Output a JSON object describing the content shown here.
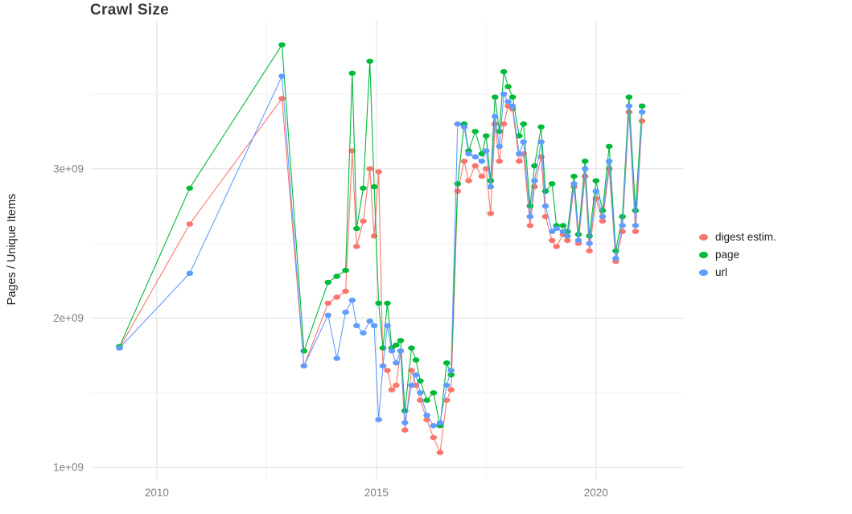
{
  "chart_data": {
    "type": "line",
    "title": "Crawl Size",
    "xlabel": "",
    "ylabel": "Pages / Unique Items",
    "legend_position": "right",
    "grid": true,
    "x_axis": {
      "range": [
        2008.5,
        2022.0
      ],
      "ticks": [
        {
          "v": 2010,
          "label": "2010"
        },
        {
          "v": 2015,
          "label": "2015"
        },
        {
          "v": 2020,
          "label": "2020"
        }
      ],
      "minor": [
        2012.5,
        2017.5
      ]
    },
    "y_axis": {
      "range": [
        920000000.0,
        3990000000.0
      ],
      "ticks": [
        {
          "v": 1000000000.0,
          "label": "1e+09"
        },
        {
          "v": 2000000000.0,
          "label": "2e+09"
        },
        {
          "v": 3000000000.0,
          "label": "3e+09"
        }
      ],
      "minor": [
        1500000000.0,
        2500000000.0,
        3500000000.0
      ]
    },
    "series": [
      {
        "name": "digest estim.",
        "color": "#F8766D",
        "column": 1
      },
      {
        "name": "page",
        "color": "#00BA38",
        "column": 2
      },
      {
        "name": "url",
        "color": "#619CFF",
        "column": 3
      }
    ],
    "columns": [
      "year",
      "digest estim.",
      "page",
      "url"
    ],
    "rows": [
      [
        2009.15,
        1800000000.0,
        1810000000.0,
        1800000000.0
      ],
      [
        2010.75,
        2630000000.0,
        2870000000.0,
        2300000000.0
      ],
      [
        2012.85,
        3470000000.0,
        3830000000.0,
        3620000000.0
      ],
      [
        2013.35,
        1680000000.0,
        1780000000.0,
        1680000000.0
      ],
      [
        2013.9,
        2100000000.0,
        2240000000.0,
        2020000000.0
      ],
      [
        2014.1,
        2140000000.0,
        2280000000.0,
        1730000000.0
      ],
      [
        2014.3,
        2180000000.0,
        2320000000.0,
        2040000000.0
      ],
      [
        2014.45,
        3120000000.0,
        3640000000.0,
        2120000000.0
      ],
      [
        2014.55,
        2480000000.0,
        2600000000.0,
        1950000000.0
      ],
      [
        2014.7,
        2650000000.0,
        2870000000.0,
        1900000000.0
      ],
      [
        2014.85,
        3000000000.0,
        3720000000.0,
        1980000000.0
      ],
      [
        2014.95,
        2550000000.0,
        2880000000.0,
        1950000000.0
      ],
      [
        2015.05,
        2980000000.0,
        2100000000.0,
        1320000000.0
      ],
      [
        2015.15,
        1680000000.0,
        1800000000.0,
        1680000000.0
      ],
      [
        2015.25,
        1650000000.0,
        2100000000.0,
        1950000000.0
      ],
      [
        2015.35,
        1520000000.0,
        1800000000.0,
        1780000000.0
      ],
      [
        2015.45,
        1550000000.0,
        1820000000.0,
        1700000000.0
      ],
      [
        2015.55,
        1780000000.0,
        1850000000.0,
        1780000000.0
      ],
      [
        2015.65,
        1250000000.0,
        1380000000.0,
        1300000000.0
      ],
      [
        2015.8,
        1650000000.0,
        1800000000.0,
        1550000000.0
      ],
      [
        2015.9,
        1550000000.0,
        1720000000.0,
        1620000000.0
      ],
      [
        2016.0,
        1450000000.0,
        1580000000.0,
        1500000000.0
      ],
      [
        2016.15,
        1320000000.0,
        1450000000.0,
        1350000000.0
      ],
      [
        2016.3,
        1200000000.0,
        1500000000.0,
        1280000000.0
      ],
      [
        2016.45,
        1100000000.0,
        1280000000.0,
        1300000000.0
      ],
      [
        2016.6,
        1450000000.0,
        1700000000.0,
        1550000000.0
      ],
      [
        2016.7,
        1520000000.0,
        1620000000.0,
        1650000000.0
      ],
      [
        2016.85,
        2850000000.0,
        2900000000.0,
        3300000000.0
      ],
      [
        2017.0,
        3050000000.0,
        3300000000.0,
        3280000000.0
      ],
      [
        2017.1,
        2920000000.0,
        3120000000.0,
        3100000000.0
      ],
      [
        2017.25,
        3020000000.0,
        3250000000.0,
        3080000000.0
      ],
      [
        2017.4,
        2950000000.0,
        3100000000.0,
        3050000000.0
      ],
      [
        2017.5,
        3000000000.0,
        3220000000.0,
        3120000000.0
      ],
      [
        2017.6,
        2700000000.0,
        2920000000.0,
        2880000000.0
      ],
      [
        2017.7,
        3300000000.0,
        3480000000.0,
        3350000000.0
      ],
      [
        2017.8,
        3050000000.0,
        3250000000.0,
        3150000000.0
      ],
      [
        2017.9,
        3300000000.0,
        3650000000.0,
        3500000000.0
      ],
      [
        2018.0,
        3420000000.0,
        3550000000.0,
        3450000000.0
      ],
      [
        2018.1,
        3400000000.0,
        3480000000.0,
        3420000000.0
      ],
      [
        2018.25,
        3050000000.0,
        3220000000.0,
        3100000000.0
      ],
      [
        2018.35,
        3100000000.0,
        3300000000.0,
        3180000000.0
      ],
      [
        2018.5,
        2620000000.0,
        2750000000.0,
        2680000000.0
      ],
      [
        2018.6,
        2880000000.0,
        3020000000.0,
        2920000000.0
      ],
      [
        2018.75,
        3080000000.0,
        3280000000.0,
        3180000000.0
      ],
      [
        2018.85,
        2680000000.0,
        2850000000.0,
        2750000000.0
      ],
      [
        2019.0,
        2520000000.0,
        2900000000.0,
        2580000000.0
      ],
      [
        2019.1,
        2480000000.0,
        2620000000.0,
        2600000000.0
      ],
      [
        2019.25,
        2560000000.0,
        2620000000.0,
        2580000000.0
      ],
      [
        2019.35,
        2520000000.0,
        2580000000.0,
        2550000000.0
      ],
      [
        2019.5,
        2880000000.0,
        2950000000.0,
        2900000000.0
      ],
      [
        2019.6,
        2500000000.0,
        2560000000.0,
        2520000000.0
      ],
      [
        2019.75,
        2950000000.0,
        3050000000.0,
        3000000000.0
      ],
      [
        2019.85,
        2450000000.0,
        2550000000.0,
        2500000000.0
      ],
      [
        2020.0,
        2800000000.0,
        2920000000.0,
        2850000000.0
      ],
      [
        2020.15,
        2650000000.0,
        2720000000.0,
        2680000000.0
      ],
      [
        2020.3,
        3000000000.0,
        3150000000.0,
        3050000000.0
      ],
      [
        2020.45,
        2380000000.0,
        2450000000.0,
        2400000000.0
      ],
      [
        2020.6,
        2580000000.0,
        2680000000.0,
        2620000000.0
      ],
      [
        2020.75,
        3380000000.0,
        3480000000.0,
        3420000000.0
      ],
      [
        2020.9,
        2580000000.0,
        2720000000.0,
        2620000000.0
      ],
      [
        2021.05,
        3320000000.0,
        3420000000.0,
        3380000000.0
      ]
    ],
    "style": {
      "grid_major_color": "#e4e4e4",
      "grid_minor_color": "#f2f2f2",
      "tick_label_color": "#7f7f7f",
      "background": "#ffffff"
    }
  }
}
